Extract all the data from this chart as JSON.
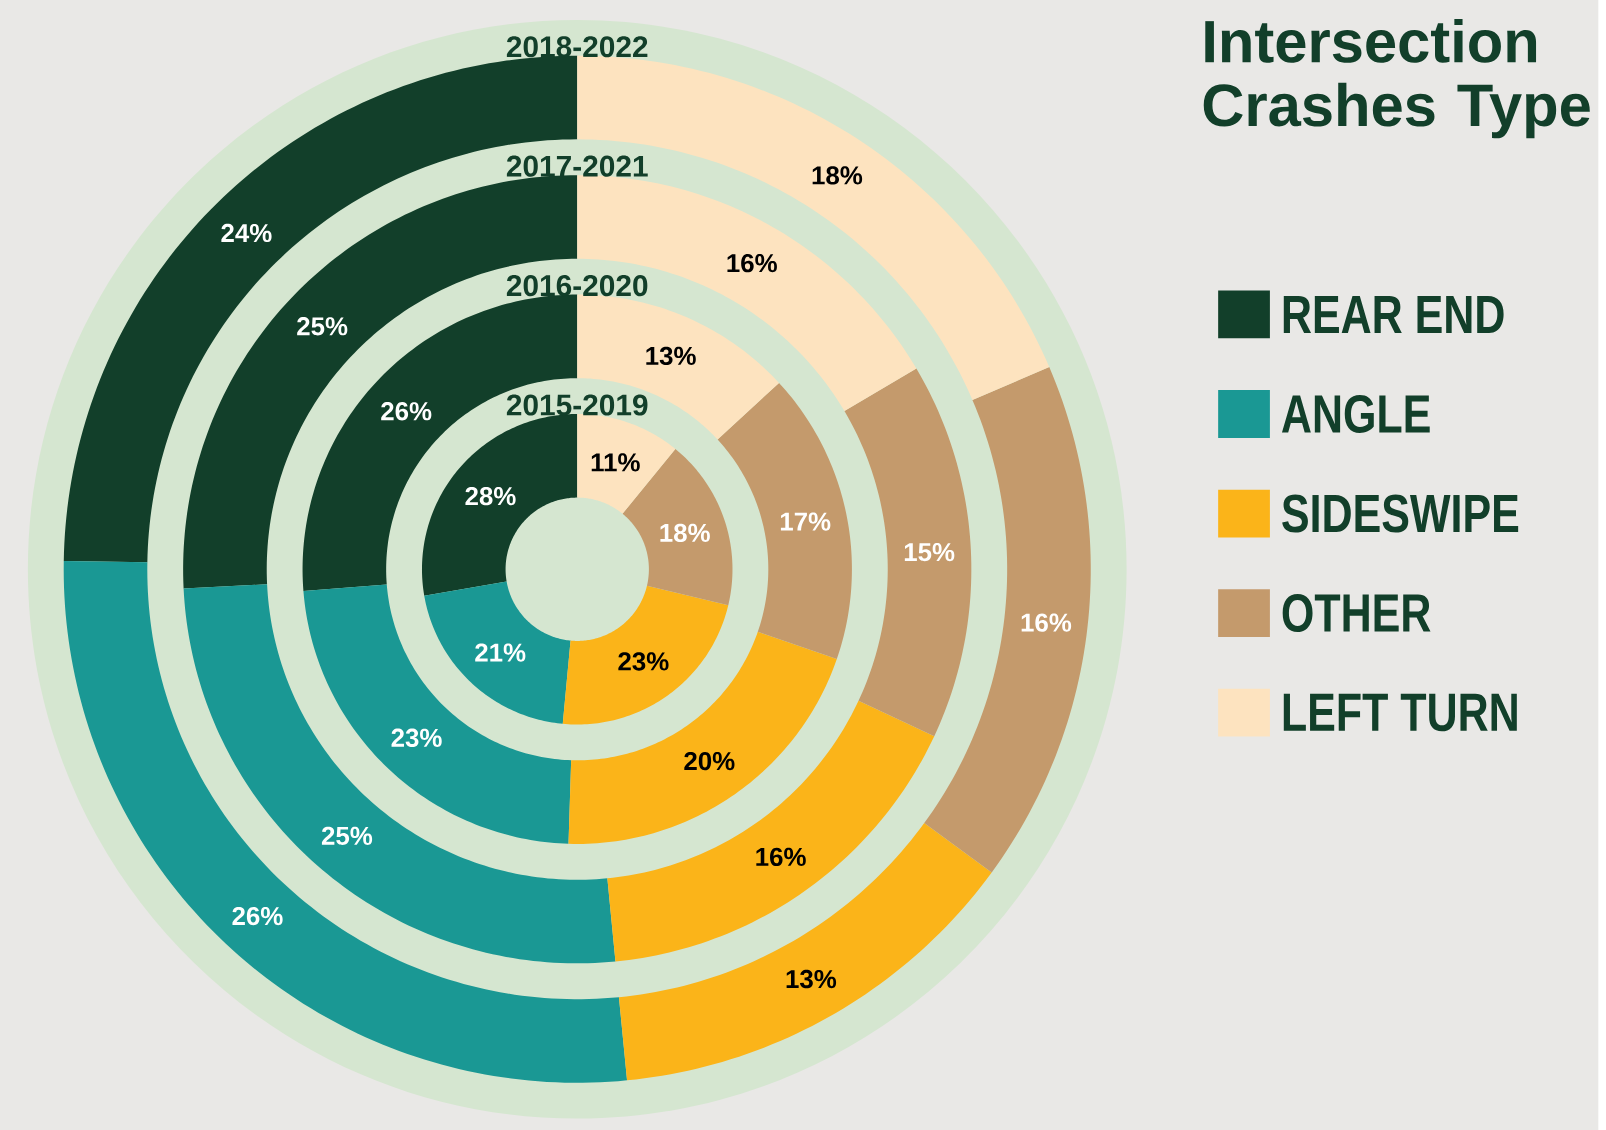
{
  "chart_data": {
    "type": "donut",
    "title": "Intersection Crashes Type",
    "categories": [
      "REAR END",
      "ANGLE",
      "SIDESWIPE",
      "OTHER",
      "LEFT TURN"
    ],
    "colors": [
      "#123f2a",
      "#1a9894",
      "#fbb419",
      "#c49a6c",
      "#fde3bf"
    ],
    "series": [
      {
        "name": "2018-2022",
        "values": [
          24,
          26,
          13,
          16,
          18
        ],
        "value_labels": [
          "24%",
          "26%",
          "13%",
          "16%",
          "18%"
        ]
      },
      {
        "name": "2017-2021",
        "values": [
          25,
          25,
          16,
          15,
          16
        ],
        "value_labels": [
          "25%",
          "25%",
          "16%",
          "15%",
          "16%"
        ]
      },
      {
        "name": "2016-2020",
        "values": [
          26,
          23,
          20,
          17,
          13
        ],
        "value_labels": [
          "26%",
          "23%",
          "20%",
          "17%",
          "13%"
        ]
      },
      {
        "name": "2015-2019",
        "values": [
          28,
          21,
          23,
          18,
          11
        ],
        "value_labels": [
          "28%",
          "21%",
          "23%",
          "18%",
          "11%"
        ]
      }
    ],
    "legend": "right"
  }
}
